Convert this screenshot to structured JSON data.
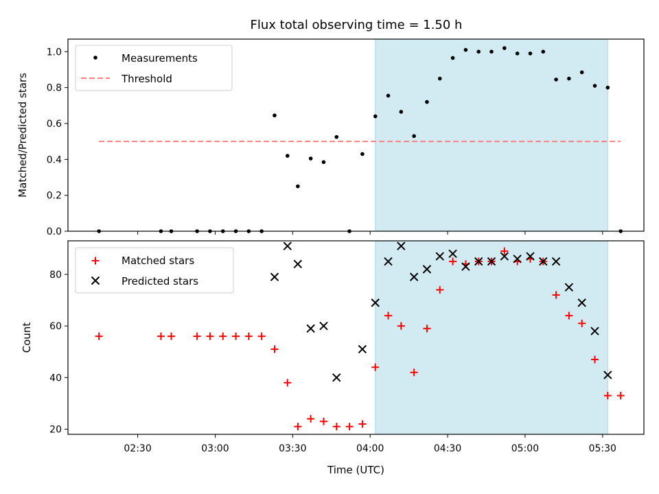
{
  "chart_data": [
    {
      "type": "scatter",
      "title": "Flux total observing time = 1.50 h",
      "xlabel": "",
      "ylabel": "Matched/Predicted stars",
      "ylim": [
        0,
        1.07
      ],
      "yticks": [
        "0.0",
        "0.2",
        "0.4",
        "0.6",
        "0.8",
        "1.0"
      ],
      "xlim": [
        "02:03",
        "05:46"
      ],
      "highlight_span": [
        "04:02",
        "05:32"
      ],
      "colors": {
        "span": "#add8e6",
        "measurements": "#000000",
        "threshold": "#ff7f7f"
      },
      "legend": {
        "placement": "upper-left",
        "entries": [
          "Measurements",
          "Threshold"
        ]
      },
      "series": [
        {
          "name": "Measurements",
          "marker": "dot",
          "x": [
            "02:15",
            "02:39",
            "02:43",
            "02:53",
            "02:58",
            "03:03",
            "03:08",
            "03:13",
            "03:18",
            "03:23",
            "03:28",
            "03:32",
            "03:37",
            "03:42",
            "03:47",
            "03:52",
            "03:57",
            "04:02",
            "04:07",
            "04:12",
            "04:17",
            "04:22",
            "04:27",
            "04:32",
            "04:37",
            "04:42",
            "04:47",
            "04:52",
            "04:57",
            "05:02",
            "05:07",
            "05:12",
            "05:17",
            "05:22",
            "05:27",
            "05:32",
            "05:37"
          ],
          "y": [
            0.0,
            0.0,
            0.0,
            0.0,
            0.0,
            0.0,
            0.0,
            0.0,
            0.0,
            0.645,
            0.42,
            0.25,
            0.405,
            0.385,
            0.525,
            0.0,
            0.43,
            0.64,
            0.755,
            0.665,
            0.53,
            0.72,
            0.85,
            0.965,
            1.01,
            1.0,
            1.0,
            1.02,
            0.99,
            0.99,
            1.0,
            0.845,
            0.85,
            0.885,
            0.81,
            0.8,
            0.0
          ]
        },
        {
          "name": "Threshold",
          "style": "dashed",
          "x": [
            "02:15",
            "05:37"
          ],
          "y": [
            0.5,
            0.5
          ]
        }
      ]
    },
    {
      "type": "scatter",
      "title": "",
      "xlabel": "Time (UTC)",
      "ylabel": "Count",
      "ylim": [
        18,
        93
      ],
      "yticks": [
        "20",
        "40",
        "60",
        "80"
      ],
      "xlim": [
        "02:03",
        "05:46"
      ],
      "xticks": [
        "02:30",
        "03:00",
        "03:30",
        "04:00",
        "04:30",
        "05:00",
        "05:30"
      ],
      "highlight_span": [
        "04:02",
        "05:32"
      ],
      "colors": {
        "span": "#add8e6",
        "matched": "#ff0000",
        "predicted": "#000000"
      },
      "legend": {
        "placement": "upper-left",
        "entries": [
          "Matched stars",
          "Predicted stars"
        ]
      },
      "series": [
        {
          "name": "Matched stars",
          "marker": "plus",
          "x": [
            "02:15",
            "02:39",
            "02:43",
            "02:53",
            "02:58",
            "03:03",
            "03:08",
            "03:13",
            "03:18",
            "03:23",
            "03:28",
            "03:32",
            "03:37",
            "03:42",
            "03:47",
            "03:52",
            "03:57",
            "04:02",
            "04:07",
            "04:12",
            "04:17",
            "04:22",
            "04:27",
            "04:32",
            "04:37",
            "04:42",
            "04:47",
            "04:52",
            "04:57",
            "05:02",
            "05:07",
            "05:12",
            "05:17",
            "05:22",
            "05:27",
            "05:32",
            "05:37"
          ],
          "y": [
            56,
            56,
            56,
            56,
            56,
            56,
            56,
            56,
            56,
            51,
            38,
            21,
            24,
            23,
            21,
            21,
            22,
            44,
            64,
            60,
            42,
            59,
            74,
            85,
            84,
            85,
            85,
            89,
            85,
            86,
            85,
            72,
            64,
            61,
            47,
            33,
            33
          ]
        },
        {
          "name": "Predicted stars",
          "marker": "x",
          "x": [
            "03:23",
            "03:28",
            "03:32",
            "03:37",
            "03:42",
            "03:47",
            "03:57",
            "04:02",
            "04:07",
            "04:12",
            "04:17",
            "04:22",
            "04:27",
            "04:32",
            "04:37",
            "04:42",
            "04:47",
            "04:52",
            "04:57",
            "05:02",
            "05:07",
            "05:12",
            "05:17",
            "05:22",
            "05:27",
            "05:32"
          ],
          "y": [
            79,
            91,
            84,
            59,
            60,
            40,
            51,
            69,
            85,
            91,
            79,
            82,
            87,
            88,
            83,
            85,
            85,
            87,
            86,
            87,
            85,
            85,
            75,
            69,
            58,
            41
          ]
        }
      ]
    }
  ]
}
